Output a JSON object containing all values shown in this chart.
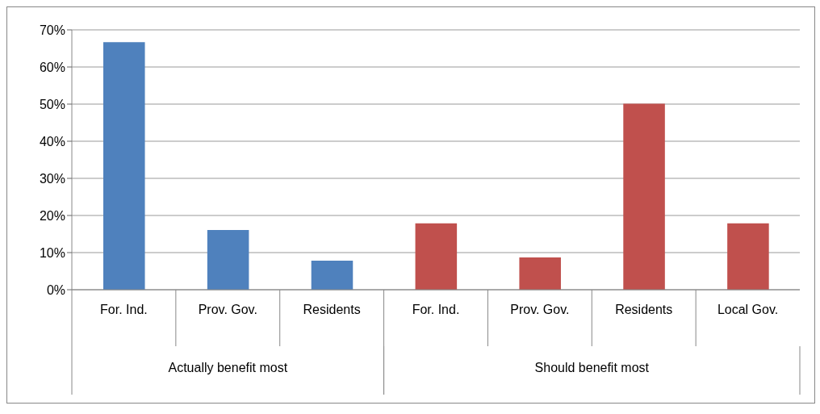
{
  "chart_data": {
    "type": "bar",
    "categories": [
      "For. Ind.",
      "Prov. Gov.",
      "Residents",
      "For. Ind.",
      "Prov. Gov.",
      "Residents",
      "Local Gov."
    ],
    "series": [
      {
        "color": "#4f81bd",
        "values": [
          66.7,
          16.1,
          7.8,
          null,
          null,
          null,
          null
        ]
      },
      {
        "color": "#c0504d",
        "values": [
          null,
          null,
          null,
          17.9,
          8.7,
          50.1,
          17.9
        ]
      }
    ],
    "stacked": true,
    "ylim": [
      0,
      70
    ],
    "yticks": [
      {
        "value": 0,
        "label": "0%"
      },
      {
        "value": 10,
        "label": "10%"
      },
      {
        "value": 20,
        "label": "20%"
      },
      {
        "value": 30,
        "label": "30%"
      },
      {
        "value": 40,
        "label": "40%"
      },
      {
        "value": 50,
        "label": "50%"
      },
      {
        "value": 60,
        "label": "60%"
      },
      {
        "value": 70,
        "label": "70%"
      }
    ],
    "annotations": [
      "Actually benefit most",
      "Should benefit most"
    ],
    "grid": "y",
    "legend": false
  }
}
